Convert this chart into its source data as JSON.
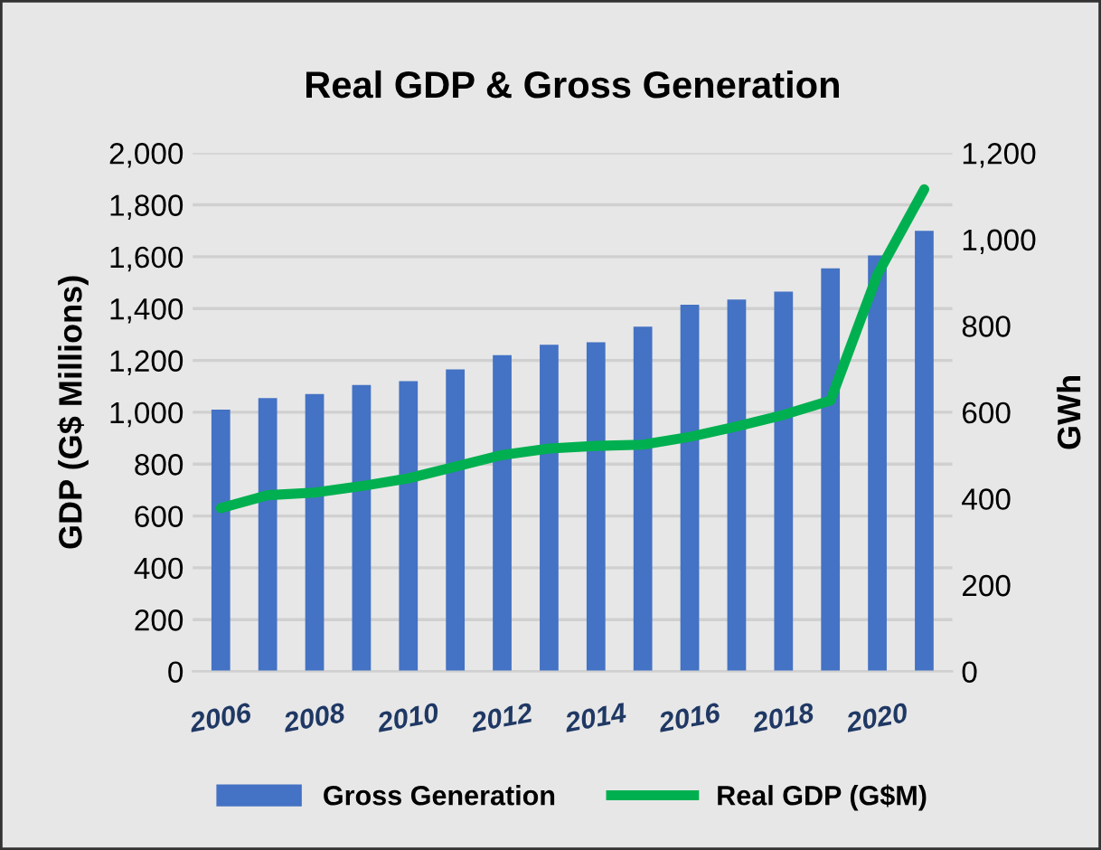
{
  "chart_data": {
    "type": "bar",
    "title": "Real GDP & Gross Generation",
    "ylabel": "GDP (G$ Millions)",
    "y2label": "GWh",
    "categories": [
      "2006",
      null,
      "2008",
      null,
      "2010",
      null,
      "2012",
      null,
      "2014",
      null,
      "2016",
      null,
      "2018",
      null,
      "2020",
      null
    ],
    "series": [
      {
        "name": "Gross Generation",
        "axis": "y2",
        "color": "#4472c4",
        "values": [
          606,
          633,
          642,
          663,
          672,
          699,
          732,
          756,
          762,
          798,
          849,
          861,
          879,
          933,
          963,
          1020
        ]
      },
      {
        "name": "Real GDP (G$M)",
        "type": "line",
        "axis": "y",
        "color": "#00b050",
        "values": [
          630,
          680,
          690,
          715,
          745,
          790,
          835,
          860,
          870,
          875,
          905,
          945,
          990,
          1045,
          1530,
          1860
        ]
      }
    ],
    "ylim": [
      0,
      2000
    ],
    "yticks": [
      {
        "value": 0,
        "label": "0"
      },
      {
        "value": 200,
        "label": "200"
      },
      {
        "value": 400,
        "label": "400"
      },
      {
        "value": 600,
        "label": "600"
      },
      {
        "value": 800,
        "label": "800"
      },
      {
        "value": 1000,
        "label": "1,000"
      },
      {
        "value": 1200,
        "label": "1,200"
      },
      {
        "value": 1400,
        "label": "1,400"
      },
      {
        "value": 1600,
        "label": "1,600"
      },
      {
        "value": 1800,
        "label": "1,800"
      },
      {
        "value": 2000,
        "label": "2,000"
      }
    ],
    "y2lim": [
      0,
      1200
    ],
    "y2ticks": [
      {
        "value": 0,
        "label": "0"
      },
      {
        "value": 200,
        "label": "200"
      },
      {
        "value": 400,
        "label": "400"
      },
      {
        "value": 600,
        "label": "600"
      },
      {
        "value": 800,
        "label": "800"
      },
      {
        "value": 1000,
        "label": "1,000"
      },
      {
        "value": 1200,
        "label": "1,200"
      }
    ],
    "grid": "y",
    "legend": "bottom",
    "marker": "none",
    "line_style": "solid"
  }
}
